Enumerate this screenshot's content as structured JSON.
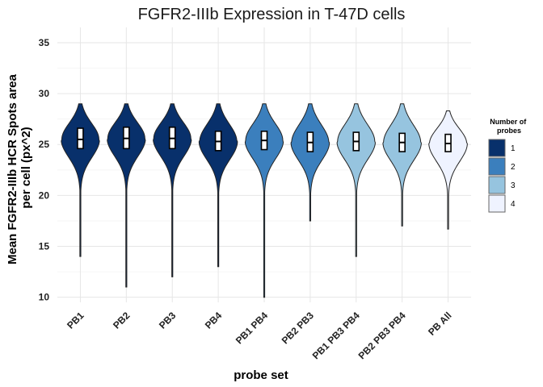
{
  "chart_data": {
    "type": "violin",
    "title": "FGFR2-IIIb Expression in T-47D cells",
    "xlabel": "probe set",
    "ylabel_lines": [
      "Mean FGFR2-IIIb HCR Spots area",
      "per cell (px^2)"
    ],
    "ylim": [
      9.5,
      36.5
    ],
    "yticks": [
      10,
      15,
      20,
      25,
      30,
      35
    ],
    "grid": true,
    "legend": {
      "title_lines": [
        "Number of",
        "probes"
      ],
      "position": "right",
      "entries": [
        {
          "label": "1",
          "color": "#08306b"
        },
        {
          "label": "2",
          "color": "#3b7fbd"
        },
        {
          "label": "3",
          "color": "#96c4df"
        },
        {
          "label": "4",
          "color": "#eff3ff"
        }
      ]
    },
    "categories": [
      "PB1",
      "PB2",
      "PB3",
      "PB4",
      "PB1 PB4",
      "PB2 PB3",
      "PB1 PB3 PB4",
      "PB2 PB3 PB4",
      "PB All"
    ],
    "violins": [
      {
        "probes": 1,
        "min": 14.0,
        "max": 29.0,
        "q1": 24.6,
        "median": 25.5,
        "q3": 26.6
      },
      {
        "probes": 1,
        "min": 11.0,
        "max": 29.0,
        "q1": 24.6,
        "median": 25.6,
        "q3": 26.7
      },
      {
        "probes": 1,
        "min": 12.0,
        "max": 29.0,
        "q1": 24.6,
        "median": 25.6,
        "q3": 26.7
      },
      {
        "probes": 1,
        "min": 13.0,
        "max": 29.0,
        "q1": 24.4,
        "median": 25.3,
        "q3": 26.3
      },
      {
        "probes": 2,
        "min": 10.0,
        "max": 29.0,
        "q1": 24.5,
        "median": 25.4,
        "q3": 26.3
      },
      {
        "probes": 2,
        "min": 17.5,
        "max": 29.0,
        "q1": 24.3,
        "median": 25.2,
        "q3": 26.2
      },
      {
        "probes": 3,
        "min": 14.0,
        "max": 29.0,
        "q1": 24.4,
        "median": 25.3,
        "q3": 26.2
      },
      {
        "probes": 3,
        "min": 17.0,
        "max": 29.0,
        "q1": 24.3,
        "median": 25.2,
        "q3": 26.1
      },
      {
        "probes": 4,
        "min": 16.7,
        "max": 28.3,
        "q1": 24.3,
        "median": 25.1,
        "q3": 26.0
      }
    ]
  }
}
